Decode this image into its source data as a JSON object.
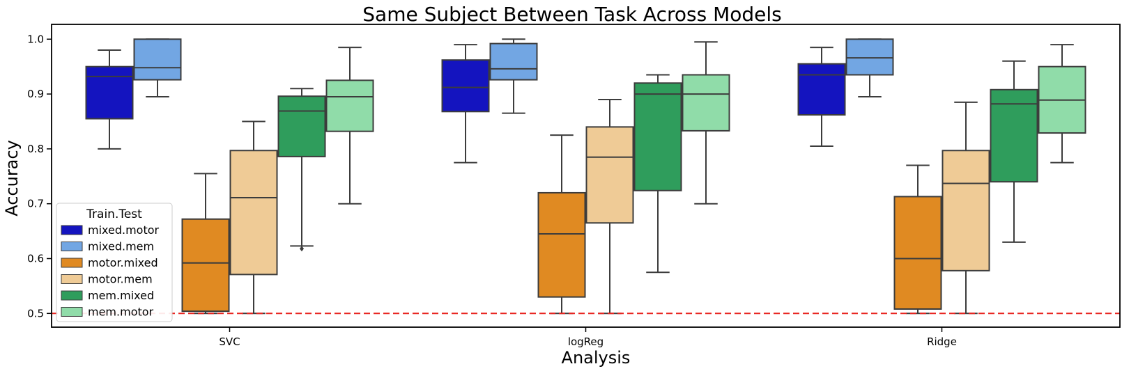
{
  "chart_data": {
    "type": "box",
    "title": "Same Subject Between Task Across Models",
    "xlabel": "Analysis",
    "ylabel": "Accuracy",
    "categories": [
      "SVC",
      "logReg",
      "Ridge"
    ],
    "ylim": [
      0.475,
      1.027
    ],
    "yticks": [
      "0.5",
      "0.6",
      "0.7",
      "0.8",
      "0.9",
      "1.0"
    ],
    "reference_line": {
      "y": 0.5,
      "color": "#e8231f",
      "style": "dashed"
    },
    "legend": {
      "title": "Train.Test",
      "placement": "lower-left"
    },
    "grid": false,
    "series": [
      {
        "name": "mixed.motor",
        "color": "#1414bf",
        "boxes": [
          {
            "whislo": 0.8,
            "q1": 0.855,
            "med": 0.932,
            "q3": 0.95,
            "whishi": 0.98,
            "fliers": []
          },
          {
            "whislo": 0.775,
            "q1": 0.868,
            "med": 0.912,
            "q3": 0.962,
            "whishi": 0.99,
            "fliers": []
          },
          {
            "whislo": 0.805,
            "q1": 0.862,
            "med": 0.935,
            "q3": 0.955,
            "whishi": 0.985,
            "fliers": []
          }
        ]
      },
      {
        "name": "mixed.mem",
        "color": "#72a6e3",
        "boxes": [
          {
            "whislo": 0.895,
            "q1": 0.926,
            "med": 0.948,
            "q3": 1.0,
            "whishi": 1.0,
            "fliers": []
          },
          {
            "whislo": 0.865,
            "q1": 0.926,
            "med": 0.946,
            "q3": 0.992,
            "whishi": 1.0,
            "fliers": []
          },
          {
            "whislo": 0.895,
            "q1": 0.935,
            "med": 0.966,
            "q3": 1.0,
            "whishi": 1.0,
            "fliers": []
          }
        ]
      },
      {
        "name": "motor.mixed",
        "color": "#e08a22",
        "boxes": [
          {
            "whislo": 0.5,
            "q1": 0.504,
            "med": 0.592,
            "q3": 0.672,
            "whishi": 0.755,
            "fliers": []
          },
          {
            "whislo": 0.5,
            "q1": 0.53,
            "med": 0.645,
            "q3": 0.72,
            "whishi": 0.825,
            "fliers": []
          },
          {
            "whislo": 0.5,
            "q1": 0.508,
            "med": 0.6,
            "q3": 0.713,
            "whishi": 0.77,
            "fliers": []
          }
        ]
      },
      {
        "name": "motor.mem",
        "color": "#efcb96",
        "boxes": [
          {
            "whislo": 0.5,
            "q1": 0.571,
            "med": 0.711,
            "q3": 0.797,
            "whishi": 0.85,
            "fliers": []
          },
          {
            "whislo": 0.5,
            "q1": 0.665,
            "med": 0.785,
            "q3": 0.84,
            "whishi": 0.89,
            "fliers": []
          },
          {
            "whislo": 0.5,
            "q1": 0.578,
            "med": 0.737,
            "q3": 0.797,
            "whishi": 0.885,
            "fliers": []
          }
        ]
      },
      {
        "name": "mem.mixed",
        "color": "#2f9d5c",
        "boxes": [
          {
            "whislo": 0.623,
            "q1": 0.786,
            "med": 0.869,
            "q3": 0.896,
            "whishi": 0.91,
            "fliers": [
              0.618
            ]
          },
          {
            "whislo": 0.575,
            "q1": 0.724,
            "med": 0.9,
            "q3": 0.92,
            "whishi": 0.935,
            "fliers": []
          },
          {
            "whislo": 0.63,
            "q1": 0.74,
            "med": 0.882,
            "q3": 0.908,
            "whishi": 0.96,
            "fliers": []
          }
        ]
      },
      {
        "name": "mem.motor",
        "color": "#90dca9",
        "boxes": [
          {
            "whislo": 0.7,
            "q1": 0.832,
            "med": 0.895,
            "q3": 0.925,
            "whishi": 0.985,
            "fliers": []
          },
          {
            "whislo": 0.7,
            "q1": 0.833,
            "med": 0.9,
            "q3": 0.935,
            "whishi": 0.995,
            "fliers": []
          },
          {
            "whislo": 0.775,
            "q1": 0.829,
            "med": 0.889,
            "q3": 0.95,
            "whishi": 0.99,
            "fliers": []
          }
        ]
      }
    ]
  }
}
